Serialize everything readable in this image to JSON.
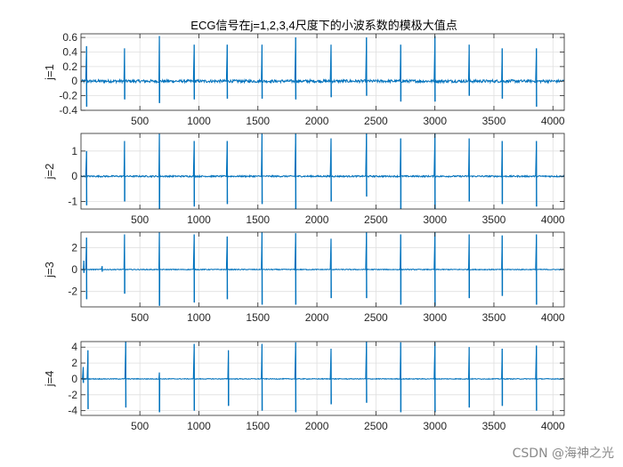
{
  "figure_title": "ECG信号在j=1,2,3,4尺度下的小波系数的模极大值点",
  "watermark": "CSDN @海神之光",
  "colors": {
    "series": "#0072bd",
    "grid": "#dfdfdf",
    "axis": "#262626",
    "background": "#ffffff"
  },
  "chart_data": [
    {
      "type": "line",
      "ylabel": "j=1",
      "xlim": [
        1,
        4096
      ],
      "ylim": [
        -0.4,
        0.65
      ],
      "yticks": [
        -0.4,
        -0.2,
        0,
        0.2,
        0.4,
        0.6
      ],
      "ytick_labels": [
        "-0.4",
        "-0.2",
        "0",
        "0.2",
        "0.4",
        "0.6"
      ],
      "xticks": [
        500,
        1000,
        1500,
        2000,
        2500,
        3000,
        3500,
        4000
      ],
      "xtick_labels": [
        "500",
        "1000",
        "1500",
        "2000",
        "2500",
        "3000",
        "3500",
        "4000"
      ],
      "grid": true,
      "noise_amplitude": 0.02,
      "spikes": [
        {
          "x": 48,
          "min": -0.35,
          "max": 0.48
        },
        {
          "x": 370,
          "min": -0.25,
          "max": 0.45
        },
        {
          "x": 665,
          "min": -0.3,
          "max": 0.62
        },
        {
          "x": 960,
          "min": -0.25,
          "max": 0.5
        },
        {
          "x": 1240,
          "min": -0.24,
          "max": 0.5
        },
        {
          "x": 1535,
          "min": -0.24,
          "max": 0.5
        },
        {
          "x": 1820,
          "min": -0.25,
          "max": 0.6
        },
        {
          "x": 2120,
          "min": -0.22,
          "max": 0.5
        },
        {
          "x": 2420,
          "min": -0.2,
          "max": 0.6
        },
        {
          "x": 2710,
          "min": -0.28,
          "max": 0.5
        },
        {
          "x": 3000,
          "min": -0.28,
          "max": 0.62
        },
        {
          "x": 3290,
          "min": -0.2,
          "max": 0.5
        },
        {
          "x": 3570,
          "min": -0.24,
          "max": 0.45
        },
        {
          "x": 3860,
          "min": -0.35,
          "max": 0.45
        }
      ]
    },
    {
      "type": "line",
      "ylabel": "j=2",
      "xlim": [
        1,
        4096
      ],
      "ylim": [
        -1.3,
        1.7
      ],
      "yticks": [
        -1,
        0,
        1
      ],
      "ytick_labels": [
        "-1",
        "0",
        "1"
      ],
      "xticks": [
        500,
        1000,
        1500,
        2000,
        2500,
        3000,
        3500,
        4000
      ],
      "xtick_labels": [
        "500",
        "1000",
        "1500",
        "2000",
        "2500",
        "3000",
        "3500",
        "4000"
      ],
      "grid": true,
      "noise_amplitude": 0.03,
      "spikes": [
        {
          "x": 48,
          "min": -1.15,
          "max": 1.0
        },
        {
          "x": 370,
          "min": -1.0,
          "max": 1.4
        },
        {
          "x": 665,
          "min": -1.3,
          "max": 1.7
        },
        {
          "x": 960,
          "min": -1.2,
          "max": 1.4
        },
        {
          "x": 1240,
          "min": -1.1,
          "max": 1.4
        },
        {
          "x": 1535,
          "min": -1.1,
          "max": 1.7
        },
        {
          "x": 1820,
          "min": -1.3,
          "max": 1.7
        },
        {
          "x": 2120,
          "min": -1.0,
          "max": 1.5
        },
        {
          "x": 2420,
          "min": -0.8,
          "max": 1.7
        },
        {
          "x": 2710,
          "min": -1.3,
          "max": 1.5
        },
        {
          "x": 3000,
          "min": -1.3,
          "max": 1.7
        },
        {
          "x": 3290,
          "min": -1.0,
          "max": 1.5
        },
        {
          "x": 3570,
          "min": -1.1,
          "max": 1.4
        },
        {
          "x": 3860,
          "min": -1.2,
          "max": 1.4
        }
      ]
    },
    {
      "type": "line",
      "ylabel": "j=3",
      "xlim": [
        1,
        4096
      ],
      "ylim": [
        -3.4,
        3.4
      ],
      "yticks": [
        -2,
        0,
        2
      ],
      "ytick_labels": [
        "-2",
        "0",
        "2"
      ],
      "xticks": [
        500,
        1000,
        1500,
        2000,
        2500,
        3000,
        3500,
        4000
      ],
      "xtick_labels": [
        "500",
        "1000",
        "1500",
        "2000",
        "2500",
        "3000",
        "3500",
        "4000"
      ],
      "grid": true,
      "noise_amplitude": 0.04,
      "spikes": [
        {
          "x": 25,
          "min": -0.3,
          "max": 0.8
        },
        {
          "x": 48,
          "min": -2.7,
          "max": 2.9
        },
        {
          "x": 180,
          "min": -0.2,
          "max": 0.3
        },
        {
          "x": 370,
          "min": -2.2,
          "max": 3.2
        },
        {
          "x": 665,
          "min": -3.3,
          "max": 3.4
        },
        {
          "x": 960,
          "min": -3.0,
          "max": 3.2
        },
        {
          "x": 1240,
          "min": -2.7,
          "max": 3.0
        },
        {
          "x": 1535,
          "min": -3.2,
          "max": 3.4
        },
        {
          "x": 1820,
          "min": -3.2,
          "max": 3.3
        },
        {
          "x": 2120,
          "min": -2.6,
          "max": 2.8
        },
        {
          "x": 2420,
          "min": -2.6,
          "max": 3.4
        },
        {
          "x": 2710,
          "min": -3.2,
          "max": 3.2
        },
        {
          "x": 3000,
          "min": -3.3,
          "max": 3.4
        },
        {
          "x": 3290,
          "min": -2.6,
          "max": 3.2
        },
        {
          "x": 3570,
          "min": -2.4,
          "max": 3.1
        },
        {
          "x": 3860,
          "min": -3.2,
          "max": 3.2
        }
      ]
    },
    {
      "type": "line",
      "ylabel": "j=4",
      "xlim": [
        1,
        4096
      ],
      "ylim": [
        -4.6,
        4.7
      ],
      "yticks": [
        -4,
        -2,
        0,
        2,
        4
      ],
      "ytick_labels": [
        "-4",
        "-2",
        "0",
        "2",
        "4"
      ],
      "xticks": [
        500,
        1000,
        1500,
        2000,
        2500,
        3000,
        3500,
        4000
      ],
      "xtick_labels": [
        "500",
        "1000",
        "1500",
        "2000",
        "2500",
        "3000",
        "3500",
        "4000"
      ],
      "grid": true,
      "noise_amplitude": 0.05,
      "spikes": [
        {
          "x": 20,
          "min": -0.5,
          "max": 1.5
        },
        {
          "x": 60,
          "min": -3.8,
          "max": 3.6
        },
        {
          "x": 380,
          "min": -3.6,
          "max": 4.7
        },
        {
          "x": 665,
          "min": -4.2,
          "max": 0.8
        },
        {
          "x": 960,
          "min": -4.0,
          "max": 4.4
        },
        {
          "x": 1250,
          "min": -3.4,
          "max": 3.6
        },
        {
          "x": 1535,
          "min": -4.0,
          "max": 4.4
        },
        {
          "x": 1820,
          "min": -4.2,
          "max": 4.6
        },
        {
          "x": 2120,
          "min": -3.2,
          "max": 3.8
        },
        {
          "x": 2420,
          "min": -3.0,
          "max": 4.7
        },
        {
          "x": 2710,
          "min": -4.2,
          "max": 4.6
        },
        {
          "x": 3000,
          "min": -4.2,
          "max": 4.6
        },
        {
          "x": 3290,
          "min": -3.6,
          "max": 4.0
        },
        {
          "x": 3570,
          "min": -3.4,
          "max": 3.8
        },
        {
          "x": 3860,
          "min": -4.0,
          "max": 4.2
        }
      ]
    }
  ]
}
